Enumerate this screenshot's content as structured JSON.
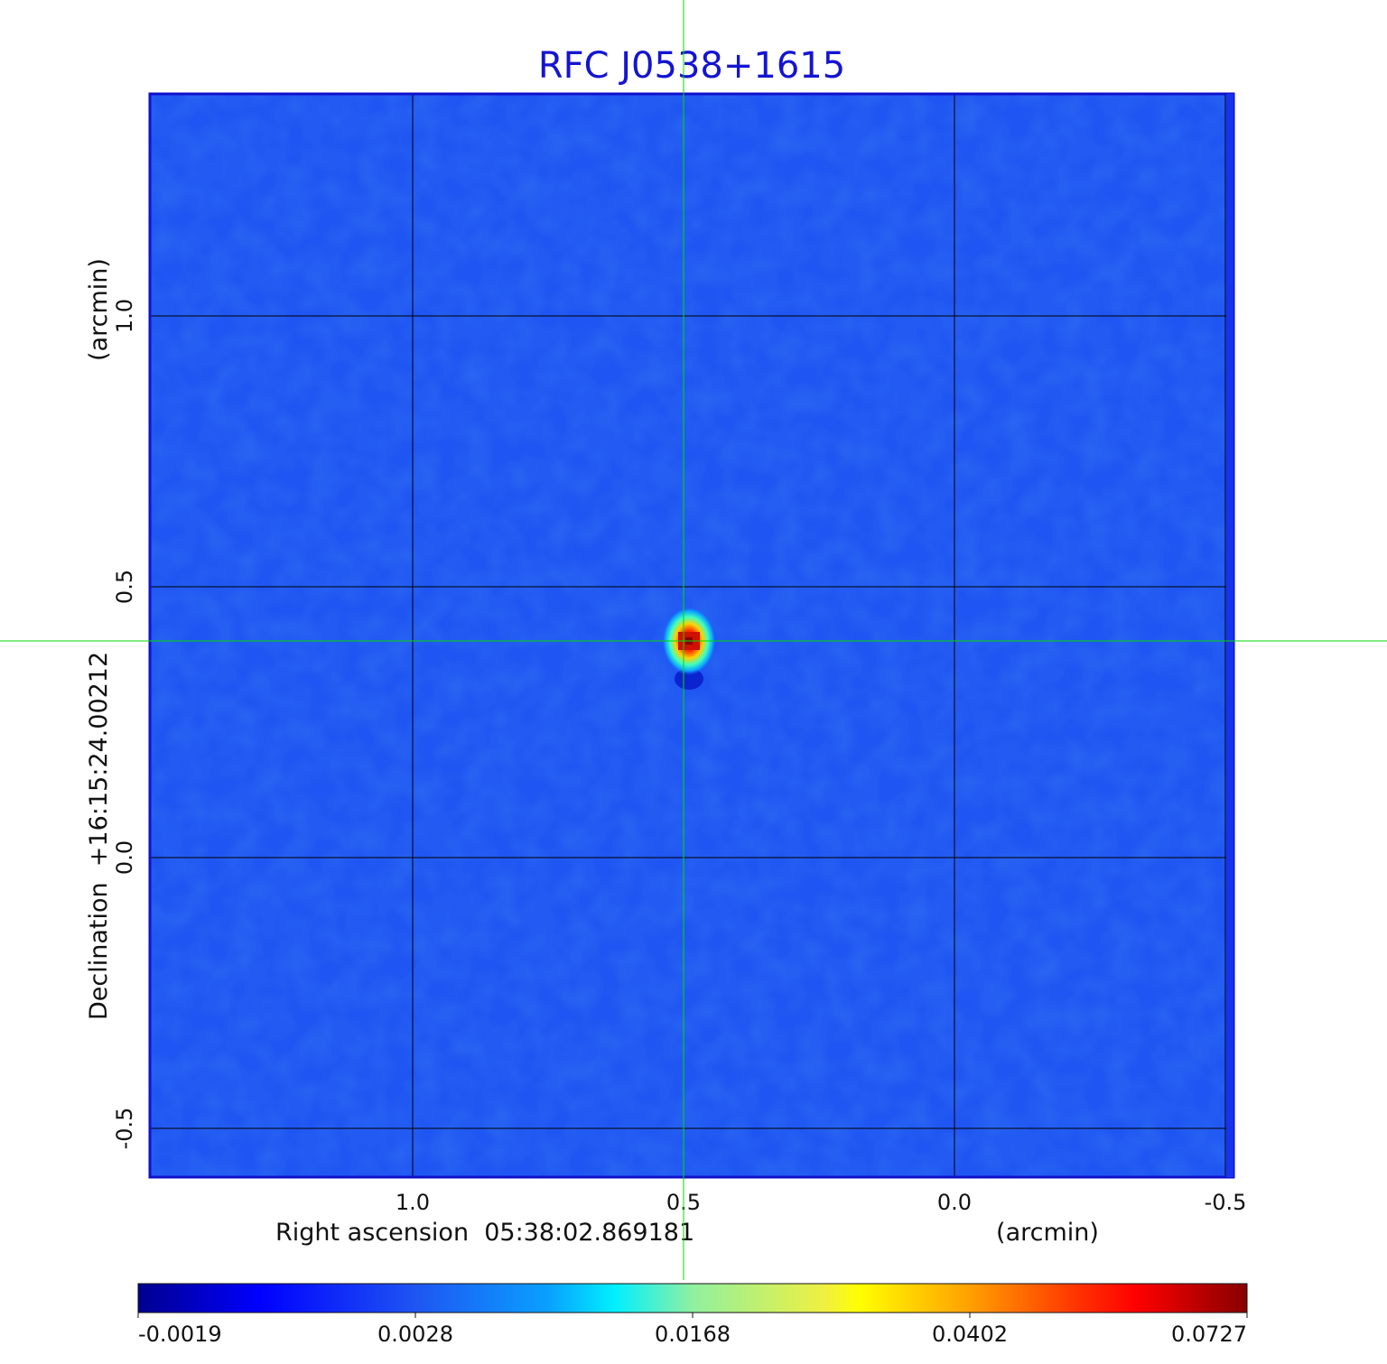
{
  "chart_data": {
    "type": "heatmap",
    "title": "RFC J0538+1615",
    "xlabel": "Right ascension  05:38:02.869181",
    "xunit": "(arcmin)",
    "ylabel": "Declination  +16:15:24.00212",
    "yunit": "(arcmin)",
    "x_ticks": [
      {
        "value": 1.0,
        "label": "1.0"
      },
      {
        "value": 0.5,
        "label": "0.5"
      },
      {
        "value": 0.0,
        "label": "0.0"
      },
      {
        "value": -0.5,
        "label": "-0.5"
      }
    ],
    "y_ticks": [
      {
        "value": 1.0,
        "label": "1.0"
      },
      {
        "value": 0.5,
        "label": "0.5"
      },
      {
        "value": 0.0,
        "label": "0.0"
      },
      {
        "value": -0.5,
        "label": "-0.5"
      }
    ],
    "xlim": [
      1.485,
      -0.515
    ],
    "ylim": [
      -0.59,
      1.41
    ],
    "grid": true,
    "colormap": "jet",
    "colorbar_ticks": [
      "-0.0019",
      "0.0028",
      "0.0168",
      "0.0402",
      "0.0727"
    ],
    "peak": {
      "x": 0.49,
      "y": 0.4,
      "value": 0.0727
    },
    "crosshair": {
      "x": 0.5,
      "y": 0.4,
      "color": "#00dd00"
    },
    "background_color": "#1f55f2"
  }
}
